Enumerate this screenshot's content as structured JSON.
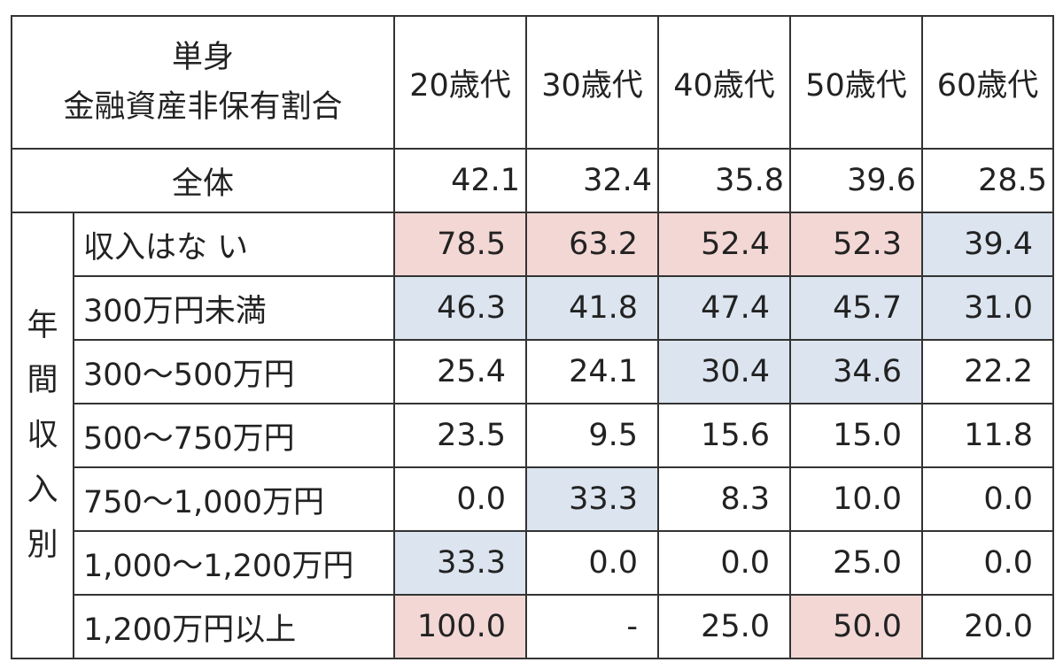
{
  "header": {
    "corner_line1": "単身",
    "corner_line2": "金融資産非保有割合",
    "columns": [
      "20歳代",
      "30歳代",
      "40歳代",
      "50歳代",
      "60歳代"
    ]
  },
  "total": {
    "label": "全体",
    "values": [
      "42.1",
      "32.4",
      "35.8",
      "39.6",
      "28.5"
    ]
  },
  "group_label_chars": [
    "年",
    "間",
    "収",
    "入",
    "別"
  ],
  "rows": [
    {
      "label": "収入はな い",
      "values": [
        "78.5",
        "63.2",
        "52.4",
        "52.3",
        "39.4"
      ]
    },
    {
      "label": "300万円未満",
      "values": [
        "46.3",
        "41.8",
        "47.4",
        "45.7",
        "31.0"
      ]
    },
    {
      "label": "300～500万円",
      "values": [
        "25.4",
        "24.1",
        "30.4",
        "34.6",
        "22.2"
      ]
    },
    {
      "label": "500～750万円",
      "values": [
        "23.5",
        "9.5",
        "15.6",
        "15.0",
        "11.8"
      ]
    },
    {
      "label": "750～1,000万円",
      "values": [
        "0.0",
        "33.3",
        "8.3",
        "10.0",
        "0.0"
      ]
    },
    {
      "label": "1,000～1,200万円",
      "values": [
        "33.3",
        "0.0",
        "0.0",
        "25.0",
        "0.0"
      ]
    },
    {
      "label": "1,200万円以上",
      "values": [
        "100.0",
        "-",
        "25.0",
        "50.0",
        "20.0"
      ]
    }
  ],
  "highlight_colors": {
    "pink": "#f2d7d5",
    "blue": "#dbe4ef"
  }
}
